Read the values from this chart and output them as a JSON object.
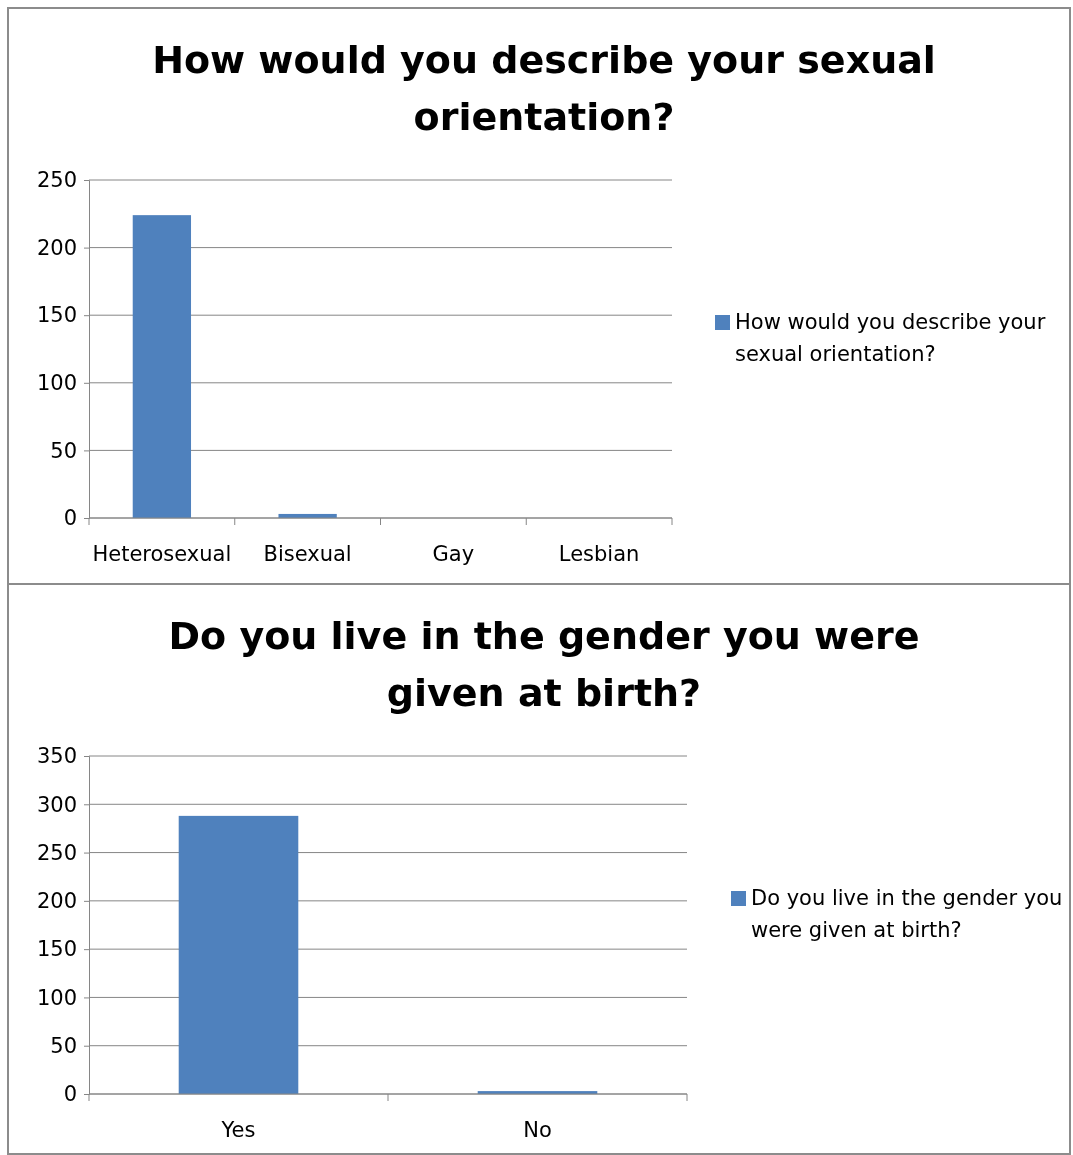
{
  "chart_data": [
    {
      "type": "bar",
      "title": "How would you describe your sexual orientation?",
      "categories": [
        "Heterosexual",
        "Bisexual",
        "Gay",
        "Lesbian"
      ],
      "series": [
        {
          "name": "How would you describe your sexual orientation?",
          "color": "#4f81bd",
          "values": [
            224,
            3,
            0,
            0
          ]
        }
      ],
      "ylim": [
        0,
        250
      ],
      "yticks": [
        0,
        50,
        100,
        150,
        200,
        250
      ],
      "grid": "y",
      "legend": "right"
    },
    {
      "type": "bar",
      "title": "Do you live in the gender you were given at birth?",
      "categories": [
        "Yes",
        "No"
      ],
      "series": [
        {
          "name": "Do you live in the gender you were given at birth?",
          "color": "#4f81bd",
          "values": [
            288,
            3
          ]
        }
      ],
      "ylim": [
        0,
        350
      ],
      "yticks": [
        0,
        50,
        100,
        150,
        200,
        250,
        300,
        350
      ],
      "grid": "y",
      "legend": "right"
    }
  ]
}
